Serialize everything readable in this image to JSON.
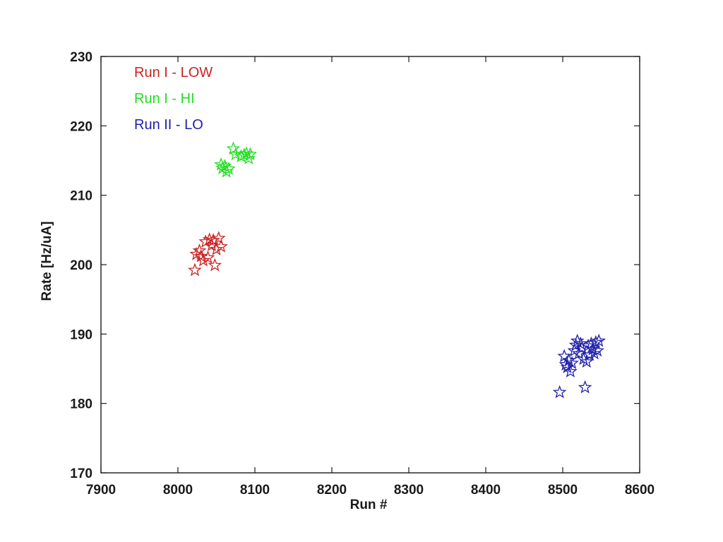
{
  "chart_data": {
    "type": "scatter",
    "title": "",
    "xlabel": "Run #",
    "ylabel": "Rate [Hz/uA]",
    "xlim": [
      7900,
      8600
    ],
    "ylim": [
      170,
      230
    ],
    "xticks": [
      7900,
      8000,
      8100,
      8200,
      8300,
      8400,
      8500,
      8600
    ],
    "yticks": [
      170,
      180,
      190,
      200,
      210,
      220,
      230
    ],
    "grid": false,
    "legend_position": "top-left",
    "marker": "star",
    "series": [
      {
        "name": "Run I - LOW",
        "color": "#cc2222",
        "points": [
          [
            8022,
            199.2
          ],
          [
            8024,
            201.5
          ],
          [
            8028,
            202.0
          ],
          [
            8030,
            201.2
          ],
          [
            8033,
            200.6
          ],
          [
            8036,
            203.3
          ],
          [
            8039,
            201.0
          ],
          [
            8041,
            203.6
          ],
          [
            8044,
            202.8
          ],
          [
            8046,
            203.5
          ],
          [
            8048,
            199.9
          ],
          [
            8050,
            202.2
          ],
          [
            8053,
            203.8
          ],
          [
            8056,
            202.6
          ]
        ]
      },
      {
        "name": "Run I - HI",
        "color": "#22dd22",
        "points": [
          [
            8056,
            214.4
          ],
          [
            8058,
            213.9
          ],
          [
            8061,
            214.2
          ],
          [
            8063,
            213.4
          ],
          [
            8066,
            213.8
          ],
          [
            8072,
            216.7
          ],
          [
            8075,
            215.9
          ],
          [
            8082,
            215.6
          ],
          [
            8086,
            215.8
          ],
          [
            8089,
            216.0
          ],
          [
            8092,
            215.3
          ],
          [
            8094,
            215.9
          ]
        ]
      },
      {
        "name": "Run II - LO",
        "color": "#2020aa",
        "points": [
          [
            8496,
            181.6
          ],
          [
            8502,
            186.8
          ],
          [
            8504,
            185.6
          ],
          [
            8506,
            185.2
          ],
          [
            8508,
            186.2
          ],
          [
            8510,
            184.6
          ],
          [
            8512,
            185.8
          ],
          [
            8515,
            187.6
          ],
          [
            8517,
            188.4
          ],
          [
            8519,
            189.0
          ],
          [
            8521,
            187.2
          ],
          [
            8523,
            188.6
          ],
          [
            8525,
            188.0
          ],
          [
            8527,
            186.4
          ],
          [
            8529,
            182.3
          ],
          [
            8531,
            186.0
          ],
          [
            8533,
            188.3
          ],
          [
            8535,
            187.0
          ],
          [
            8537,
            188.6
          ],
          [
            8539,
            187.8
          ],
          [
            8541,
            187.2
          ],
          [
            8543,
            188.8
          ],
          [
            8545,
            187.6
          ],
          [
            8547,
            189.0
          ]
        ]
      }
    ]
  }
}
